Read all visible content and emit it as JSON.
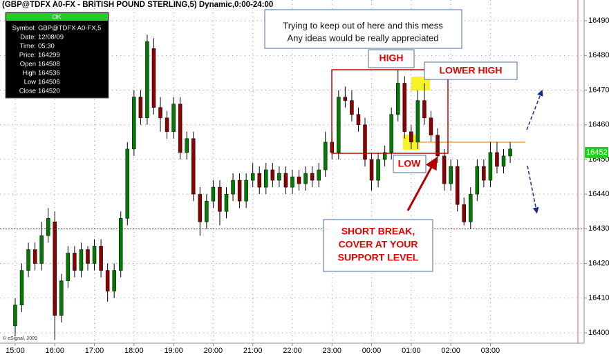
{
  "chart_data": {
    "type": "candlestick",
    "title": "(GBP@TDFX A0-FX - BRITISH POUND STERLING,5) Dynamic,0:00-24:00",
    "up_color": "#007a00",
    "down_color": "#8b0000",
    "grid": true,
    "xlim": [
      "14:37",
      "05:22"
    ],
    "xticks": [
      "15:00",
      "16:00",
      "17:00",
      "18:00",
      "19:00",
      "20:00",
      "21:00",
      "22:00",
      "23:00",
      "00:00",
      "01:00",
      "02:00",
      "03:00"
    ],
    "ylim": [
      16397,
      16496
    ],
    "yticks": [
      16400,
      16410,
      16420,
      16430,
      16440,
      16450,
      16460,
      16470,
      16480,
      16490
    ],
    "last_price": 16452,
    "hlines": [
      {
        "value": 16430,
        "color": "#e00000"
      },
      {
        "value": 16455,
        "color": "#f5a623"
      }
    ],
    "x": [
      "15:00",
      "15:10",
      "15:20",
      "15:30",
      "15:40",
      "15:50",
      "16:00",
      "16:10",
      "16:20",
      "16:30",
      "16:40",
      "16:50",
      "17:00",
      "17:10",
      "17:20",
      "17:30",
      "17:40",
      "17:50",
      "18:00",
      "18:10",
      "18:20",
      "18:30",
      "18:40",
      "18:50",
      "19:00",
      "19:10",
      "19:20",
      "19:30",
      "19:40",
      "19:50",
      "20:00",
      "20:10",
      "20:20",
      "20:30",
      "20:40",
      "20:50",
      "21:00",
      "21:10",
      "21:20",
      "21:30",
      "21:40",
      "21:50",
      "22:00",
      "22:10",
      "22:20",
      "22:30",
      "22:40",
      "22:50",
      "23:00",
      "23:10",
      "23:20",
      "23:30",
      "23:40",
      "23:50",
      "00:00",
      "00:10",
      "00:20",
      "00:30",
      "00:40",
      "00:50",
      "01:00",
      "01:10",
      "01:20",
      "01:30",
      "01:40",
      "01:50",
      "02:00",
      "02:10",
      "02:20",
      "02:30",
      "02:40",
      "02:50",
      "03:00",
      "03:10",
      "03:20",
      "03:30"
    ],
    "open": [
      16402,
      16408,
      16418,
      16424,
      16420,
      16428,
      16432,
      16405,
      16415,
      16423,
      16418,
      16424,
      16420,
      16425,
      16418,
      16412,
      16418,
      16433,
      16453,
      16468,
      16462,
      16482,
      16465,
      16462,
      16458,
      16466,
      16452,
      16456,
      16440,
      16432,
      16438,
      16442,
      16435,
      16440,
      16444,
      16438,
      16444,
      16446,
      16442,
      16447,
      16444,
      16446,
      16442,
      16445,
      16443,
      16446,
      16444,
      16447,
      16455,
      16452,
      16468,
      16467,
      16463,
      16460,
      16450,
      16444,
      16450,
      16452,
      16463,
      16472,
      16458,
      16455,
      16467,
      16462,
      16457,
      16451,
      16443,
      16448,
      16437,
      16432,
      16440,
      16448,
      16444,
      16452,
      16448,
      16451
    ],
    "close": [
      16408,
      16418,
      16424,
      16420,
      16428,
      16433,
      16405,
      16415,
      16423,
      16418,
      16424,
      16420,
      16425,
      16418,
      16412,
      16418,
      16433,
      16453,
      16468,
      16462,
      16484,
      16465,
      16462,
      16458,
      16466,
      16452,
      16456,
      16440,
      16432,
      16438,
      16442,
      16435,
      16440,
      16444,
      16438,
      16444,
      16446,
      16442,
      16447,
      16444,
      16446,
      16442,
      16445,
      16443,
      16446,
      16444,
      16447,
      16455,
      16452,
      16468,
      16467,
      16463,
      16460,
      16450,
      16444,
      16450,
      16452,
      16463,
      16472,
      16458,
      16455,
      16467,
      16462,
      16457,
      16451,
      16443,
      16448,
      16437,
      16432,
      16440,
      16448,
      16444,
      16452,
      16448,
      16451,
      16453
    ],
    "high": [
      16410,
      16420,
      16426,
      16426,
      16432,
      16436,
      16435,
      16417,
      16425,
      16425,
      16426,
      16425,
      16427,
      16427,
      16420,
      16420,
      16435,
      16455,
      16470,
      16470,
      16486,
      16485,
      16468,
      16464,
      16468,
      16468,
      16458,
      16458,
      16442,
      16440,
      16444,
      16444,
      16442,
      16446,
      16446,
      16446,
      16449,
      16448,
      16449,
      16449,
      16448,
      16448,
      16447,
      16447,
      16448,
      16448,
      16449,
      16458,
      16458,
      16470,
      16471,
      16470,
      16465,
      16462,
      16452,
      16452,
      16454,
      16465,
      16476,
      16474,
      16460,
      16470,
      16472,
      16464,
      16459,
      16453,
      16450,
      16450,
      16439,
      16442,
      16450,
      16450,
      16455,
      16455,
      16453,
      16455
    ],
    "low": [
      16399,
      16406,
      16416,
      16418,
      16418,
      16426,
      16398,
      16403,
      16413,
      16416,
      16416,
      16418,
      16418,
      16416,
      16409,
      16410,
      16416,
      16431,
      16451,
      16460,
      16460,
      16463,
      16458,
      16456,
      16456,
      16450,
      16450,
      16438,
      16428,
      16430,
      16436,
      16431,
      16433,
      16438,
      16436,
      16436,
      16442,
      16440,
      16440,
      16442,
      16442,
      16440,
      16440,
      16441,
      16441,
      16442,
      16442,
      16445,
      16450,
      16450,
      16465,
      16461,
      16458,
      16448,
      16441,
      16442,
      16448,
      16450,
      16461,
      16456,
      16453,
      16453,
      16460,
      16455,
      16449,
      16441,
      16441,
      16435,
      16431,
      16430,
      16438,
      16442,
      16442,
      16446,
      16446,
      16449
    ],
    "info_box": {
      "header": "OK",
      "rows": [
        [
          "Symbol:",
          "GBP@TDFX A0-FX,5"
        ],
        [
          "Date:",
          "12/08/09"
        ],
        [
          "Time:",
          "05:30"
        ],
        [
          "Price:",
          "164299"
        ],
        [
          "Open",
          "164508"
        ],
        [
          "High",
          "164536"
        ],
        [
          "Low",
          "164506"
        ],
        [
          "Close",
          "164520"
        ]
      ]
    },
    "annotations": {
      "note": [
        "Trying to keep out of here and this mess",
        "Any ideas would be really appreciated"
      ],
      "high": "HIGH",
      "lower_high": "LOWER HIGH",
      "low": "LOW",
      "short_break": [
        "SHORT BREAK,",
        "COVER AT YOUR",
        "SUPPORT LEVEL"
      ]
    },
    "copyright": "© eSignal, 2009"
  }
}
